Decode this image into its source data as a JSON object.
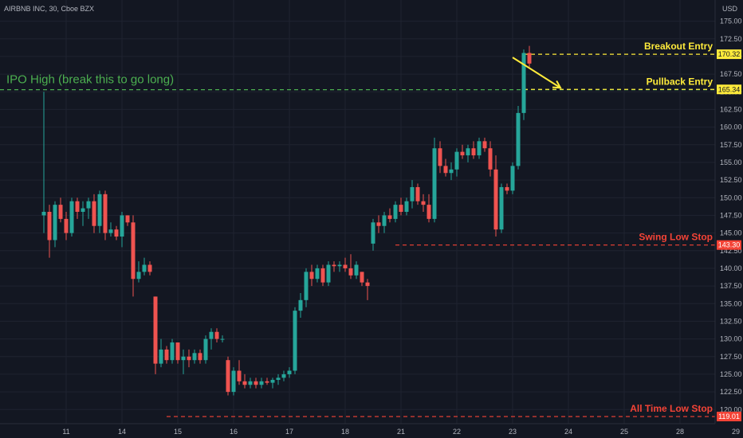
{
  "symbol_label": "AIRBNB INC, 30, Cboe BZX",
  "currency": "USD",
  "colors": {
    "background": "#131722",
    "grid": "#1f2330",
    "up": "#26a69a",
    "down": "#ef5350",
    "ipo_line": "#4caf50",
    "entry": "#ffeb3b",
    "stop": "#f44336",
    "axis_text": "#b2b5be"
  },
  "chart_data": {
    "type": "candlestick",
    "ylim": [
      118.0,
      178.0
    ],
    "y_ticks": [
      120.0,
      122.5,
      125.0,
      127.5,
      130.0,
      132.5,
      135.0,
      137.5,
      140.0,
      142.5,
      145.0,
      147.5,
      150.0,
      152.5,
      155.0,
      157.5,
      160.0,
      162.5,
      165.0,
      167.5,
      170.0,
      172.5,
      175.0
    ],
    "y_tick_labels": [
      "120.00",
      "122.50",
      "125.00",
      "127.50",
      "130.00",
      "132.50",
      "135.00",
      "137.50",
      "140.00",
      "142.50",
      "145.00",
      "147.50",
      "150.00",
      "152.50",
      "155.00",
      "157.50",
      "160.00",
      "162.50",
      "165.00",
      "167.50",
      "170.00",
      "172.50",
      "175.00"
    ],
    "x_tick_labels": [
      "11",
      "14",
      "15",
      "16",
      "17",
      "18",
      "21",
      "22",
      "23",
      "24",
      "25",
      "28",
      "29"
    ],
    "x_tick_bar_index": [
      4,
      14,
      24,
      34,
      44,
      54,
      64,
      74,
      84,
      94,
      104,
      114,
      124
    ],
    "bar_count": 128,
    "candles": [
      [
        147.5,
        165.0,
        145.0,
        148.0
      ],
      [
        148.0,
        149.0,
        141.5,
        144.0
      ],
      [
        144.0,
        149.5,
        143.0,
        149.0
      ],
      [
        149.0,
        150.0,
        146.5,
        147.0
      ],
      [
        147.0,
        148.0,
        144.0,
        145.0
      ],
      [
        145.0,
        150.0,
        144.5,
        149.5
      ],
      [
        149.5,
        150.0,
        147.0,
        148.0
      ],
      [
        148.0,
        149.5,
        146.0,
        148.5
      ],
      [
        148.5,
        150.0,
        147.0,
        149.5
      ],
      [
        149.5,
        150.5,
        145.0,
        146.0
      ],
      [
        146.0,
        151.0,
        145.0,
        150.5
      ],
      [
        150.5,
        151.0,
        144.0,
        145.0
      ],
      [
        145.0,
        146.5,
        144.5,
        145.5
      ],
      [
        145.5,
        146.0,
        144.0,
        144.5
      ],
      [
        144.5,
        148.0,
        143.0,
        147.5
      ],
      [
        147.5,
        147.5,
        146.0,
        146.5
      ],
      [
        146.5,
        147.5,
        136.0,
        138.5
      ],
      [
        138.5,
        141.0,
        138.0,
        139.5
      ],
      [
        139.5,
        141.5,
        139.0,
        140.5
      ],
      [
        140.5,
        141.0,
        139.0,
        139.5
      ],
      [
        136.0,
        136.0,
        125.0,
        126.5
      ],
      [
        126.5,
        130.0,
        126.0,
        128.5
      ],
      [
        128.5,
        129.0,
        126.5,
        127.0
      ],
      [
        127.0,
        130.0,
        126.5,
        129.5
      ],
      [
        129.5,
        129.5,
        126.5,
        127.0
      ],
      [
        127.0,
        128.5,
        125.0,
        127.5
      ],
      [
        127.5,
        128.5,
        126.0,
        127.0
      ],
      [
        127.0,
        128.5,
        126.5,
        128.0
      ],
      [
        128.0,
        128.5,
        126.5,
        127.0
      ],
      [
        127.0,
        130.5,
        126.5,
        130.0
      ],
      [
        130.0,
        131.5,
        128.5,
        131.0
      ],
      [
        131.0,
        131.5,
        129.5,
        130.0
      ],
      [
        130.0,
        130.5,
        129.5,
        130.0
      ],
      [
        127.0,
        127.5,
        122.0,
        122.5
      ],
      [
        122.5,
        126.0,
        122.0,
        125.5
      ],
      [
        125.5,
        127.0,
        123.5,
        124.0
      ],
      [
        124.0,
        125.0,
        123.0,
        123.5
      ],
      [
        123.5,
        124.5,
        123.0,
        124.0
      ],
      [
        124.0,
        124.5,
        123.0,
        123.5
      ],
      [
        123.5,
        124.5,
        123.0,
        124.0
      ],
      [
        124.0,
        124.5,
        123.5,
        123.8
      ],
      [
        123.8,
        124.5,
        123.0,
        124.2
      ],
      [
        124.2,
        125.0,
        123.5,
        124.5
      ],
      [
        124.5,
        125.5,
        124.0,
        125.0
      ],
      [
        125.0,
        126.0,
        124.5,
        125.5
      ],
      [
        125.5,
        134.5,
        125.0,
        134.0
      ],
      [
        134.0,
        136.5,
        133.0,
        135.5
      ],
      [
        135.5,
        140.0,
        134.5,
        139.5
      ],
      [
        139.5,
        140.5,
        137.5,
        138.5
      ],
      [
        138.5,
        140.5,
        138.0,
        140.0
      ],
      [
        140.0,
        140.5,
        137.5,
        138.0
      ],
      [
        138.0,
        141.0,
        137.5,
        140.5
      ],
      [
        140.5,
        141.0,
        139.5,
        140.3
      ],
      [
        140.3,
        141.0,
        139.5,
        140.5
      ],
      [
        140.5,
        141.5,
        139.5,
        140.0
      ],
      [
        140.0,
        142.0,
        138.5,
        139.0
      ],
      [
        139.0,
        141.0,
        138.5,
        140.5
      ],
      [
        139.5,
        139.5,
        137.5,
        138.0
      ],
      [
        138.0,
        138.5,
        135.5,
        137.5
      ],
      [
        143.5,
        147.0,
        142.5,
        146.5
      ],
      [
        146.5,
        147.5,
        145.0,
        146.0
      ],
      [
        146.0,
        148.0,
        145.0,
        147.5
      ],
      [
        147.5,
        148.5,
        146.5,
        147.0
      ],
      [
        147.0,
        149.5,
        146.5,
        149.0
      ],
      [
        149.0,
        150.0,
        147.5,
        148.0
      ],
      [
        148.0,
        150.0,
        147.5,
        149.5
      ],
      [
        149.5,
        152.5,
        148.5,
        151.5
      ],
      [
        151.5,
        152.0,
        149.0,
        149.5
      ],
      [
        149.5,
        150.5,
        148.0,
        149.0
      ],
      [
        149.0,
        150.5,
        146.5,
        147.0
      ],
      [
        147.0,
        158.5,
        146.5,
        157.0
      ],
      [
        157.0,
        158.0,
        153.5,
        154.5
      ],
      [
        154.5,
        155.5,
        153.0,
        153.5
      ],
      [
        153.5,
        155.0,
        152.5,
        154.0
      ],
      [
        154.0,
        157.0,
        153.0,
        156.5
      ],
      [
        156.5,
        157.5,
        155.5,
        156.0
      ],
      [
        156.0,
        157.5,
        155.0,
        157.0
      ],
      [
        157.0,
        158.0,
        155.5,
        156.0
      ],
      [
        156.0,
        158.5,
        155.5,
        158.0
      ],
      [
        158.0,
        158.5,
        156.5,
        157.0
      ],
      [
        157.0,
        158.0,
        153.0,
        154.0
      ],
      [
        154.0,
        156.0,
        144.5,
        145.5
      ],
      [
        145.5,
        152.0,
        145.0,
        151.5
      ],
      [
        151.5,
        152.0,
        150.5,
        151.0
      ],
      [
        151.0,
        155.0,
        150.5,
        154.5
      ],
      [
        154.5,
        163.0,
        154.0,
        162.0
      ],
      [
        162.0,
        171.0,
        161.0,
        170.5
      ],
      [
        170.5,
        171.5,
        168.5,
        169.0
      ]
    ],
    "candle_bar_index": [
      0,
      1,
      2,
      3,
      4,
      5,
      6,
      7,
      8,
      9,
      10,
      11,
      12,
      13,
      14,
      15,
      16,
      17,
      18,
      19,
      20,
      21,
      22,
      23,
      24,
      25,
      26,
      27,
      28,
      29,
      30,
      31,
      32,
      33,
      34,
      35,
      36,
      37,
      38,
      39,
      40,
      41,
      42,
      43,
      44,
      45,
      46,
      47,
      48,
      49,
      50,
      51,
      52,
      53,
      54,
      55,
      56,
      57,
      58,
      59,
      60,
      61,
      62,
      63,
      64,
      65,
      66,
      67,
      68,
      69,
      70,
      71,
      72,
      73,
      74,
      75,
      76,
      77,
      78,
      79,
      80,
      81,
      82,
      83,
      84,
      85,
      86,
      87
    ],
    "levels": [
      {
        "name": "IPO High (break this to go long)",
        "value": 165.3,
        "kind": "ipo",
        "tag": ""
      },
      {
        "name": "Breakout Entry",
        "value": 170.32,
        "kind": "entry",
        "tag": "170.32"
      },
      {
        "name": "Pullback Entry",
        "value": 165.34,
        "kind": "entry",
        "tag": "165.34"
      },
      {
        "name": "Swing Low Stop",
        "value": 143.3,
        "kind": "stop",
        "tag": "143.30"
      },
      {
        "name": "All Time Low Stop",
        "value": 119.01,
        "kind": "stop",
        "tag": "119.01"
      }
    ],
    "arrow": {
      "from": [
        84,
        170.32
      ],
      "to": [
        92,
        165.34
      ]
    }
  }
}
